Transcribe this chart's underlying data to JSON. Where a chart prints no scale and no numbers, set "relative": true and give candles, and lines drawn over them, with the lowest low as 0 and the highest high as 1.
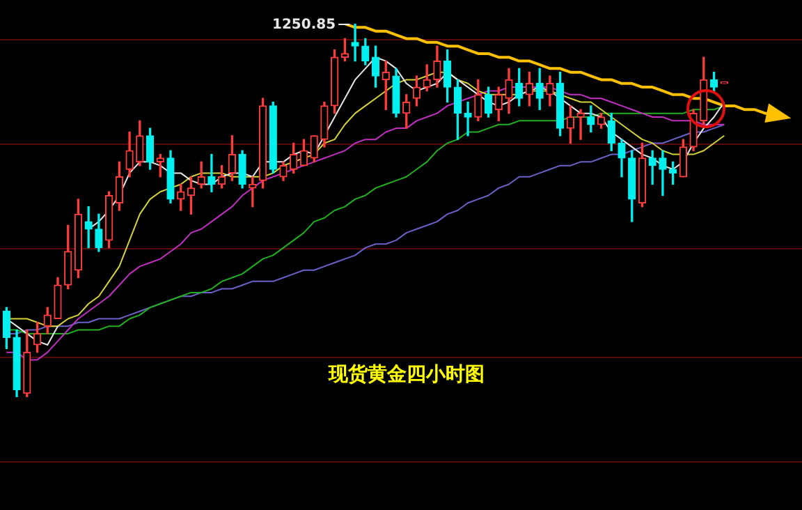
{
  "chart_data": {
    "type": "candlestick",
    "title": "现货黄金四小时图",
    "relative": true,
    "ref_lines": [
      {
        "axis": "y",
        "value": 0.96,
        "color": "#5a0a0a"
      },
      {
        "axis": "y",
        "value": 0.68,
        "color": "#5a0a0a"
      },
      {
        "axis": "y",
        "value": 0.4,
        "color": "#5a0a0a"
      },
      {
        "axis": "y",
        "value": 0.11,
        "color": "#5a0a0a"
      },
      {
        "axis": "y",
        "value": -0.17,
        "color": "#5a0a0a"
      }
    ],
    "categories": [
      null,
      null,
      null,
      null,
      null,
      null,
      null,
      null,
      null,
      null,
      null,
      null,
      null,
      null,
      null,
      null,
      null,
      null,
      null,
      null,
      null,
      null,
      null,
      null,
      null,
      null,
      null,
      null,
      null,
      null,
      null,
      null,
      null,
      null,
      null,
      null,
      null,
      null,
      null,
      null,
      null,
      null,
      null,
      null,
      null,
      null,
      null,
      null,
      null,
      null,
      null,
      null,
      null,
      null,
      null,
      null,
      null,
      null,
      null,
      null,
      null,
      null,
      null,
      null,
      null,
      null,
      null,
      null,
      null,
      null,
      null,
      null,
      null,
      null,
      null,
      null,
      null
    ],
    "ohlc": [
      [
        0.23,
        0.24,
        0.13,
        0.16
      ],
      [
        0.16,
        0.18,
        0,
        0.02
      ],
      [
        0.01,
        0.18,
        0.0,
        0.12
      ],
      [
        0.14,
        0.2,
        0.12,
        0.17
      ],
      [
        0.19,
        0.24,
        0.17,
        0.22
      ],
      [
        0.21,
        0.32,
        0.21,
        0.3
      ],
      [
        0.3,
        0.46,
        0.29,
        0.39
      ],
      [
        0.34,
        0.53,
        0.32,
        0.49
      ],
      [
        0.47,
        0.51,
        0.4,
        0.45
      ],
      [
        0.45,
        0.49,
        0.39,
        0.4
      ],
      [
        0.42,
        0.55,
        0.4,
        0.54
      ],
      [
        0.52,
        0.63,
        0.5,
        0.59
      ],
      [
        0.61,
        0.71,
        0.59,
        0.66
      ],
      [
        0.63,
        0.74,
        0.62,
        0.7
      ],
      [
        0.7,
        0.72,
        0.61,
        0.63
      ],
      [
        0.63,
        0.65,
        0.59,
        0.64
      ],
      [
        0.64,
        0.66,
        0.52,
        0.53
      ],
      [
        0.53,
        0.57,
        0.5,
        0.55
      ],
      [
        0.54,
        0.59,
        0.49,
        0.56
      ],
      [
        0.57,
        0.63,
        0.56,
        0.59
      ],
      [
        0.59,
        0.65,
        0.55,
        0.57
      ],
      [
        0.57,
        0.62,
        0.56,
        0.59
      ],
      [
        0.6,
        0.7,
        0.58,
        0.65
      ],
      [
        0.65,
        0.66,
        0.56,
        0.57
      ],
      [
        0.56,
        0.59,
        0.51,
        0.57
      ],
      [
        0.58,
        0.8,
        0.56,
        0.78
      ],
      [
        0.78,
        0.79,
        0.6,
        0.61
      ],
      [
        0.59,
        0.63,
        0.58,
        0.62
      ],
      [
        0.61,
        0.68,
        0.6,
        0.65
      ],
      [
        0.62,
        0.69,
        0.62,
        0.66
      ],
      [
        0.64,
        0.7,
        0.63,
        0.7
      ],
      [
        0.69,
        0.79,
        0.67,
        0.78
      ],
      [
        0.78,
        0.93,
        0.76,
        0.91
      ],
      [
        0.91,
        0.96,
        0.9,
        0.92
      ],
      [
        0.95,
        1,
        0.9,
        0.94
      ],
      [
        0.94,
        0.96,
        0.89,
        0.9
      ],
      [
        0.91,
        0.94,
        0.83,
        0.86
      ],
      [
        0.85,
        0.9,
        0.77,
        0.87
      ],
      [
        0.86,
        0.88,
        0.75,
        0.76
      ],
      [
        0.76,
        0.81,
        0.72,
        0.79
      ],
      [
        0.8,
        0.86,
        0.78,
        0.83
      ],
      [
        0.83,
        0.89,
        0.82,
        0.85
      ],
      [
        0.85,
        0.94,
        0.83,
        0.9
      ],
      [
        0.9,
        0.93,
        0.79,
        0.83
      ],
      [
        0.83,
        0.85,
        0.69,
        0.76
      ],
      [
        0.76,
        0.79,
        0.7,
        0.75
      ],
      [
        0.75,
        0.85,
        0.74,
        0.81
      ],
      [
        0.81,
        0.83,
        0.75,
        0.76
      ],
      [
        0.77,
        0.83,
        0.74,
        0.81
      ],
      [
        0.8,
        0.88,
        0.76,
        0.85
      ],
      [
        0.84,
        0.88,
        0.78,
        0.8
      ],
      [
        0.81,
        0.87,
        0.78,
        0.84
      ],
      [
        0.84,
        0.88,
        0.77,
        0.8
      ],
      [
        0.81,
        0.86,
        0.78,
        0.84
      ],
      [
        0.84,
        0.87,
        0.7,
        0.72
      ],
      [
        0.72,
        0.78,
        0.68,
        0.75
      ],
      [
        0.75,
        0.77,
        0.69,
        0.76
      ],
      [
        0.75,
        0.78,
        0.71,
        0.73
      ],
      [
        0.73,
        0.76,
        0.72,
        0.75
      ],
      [
        0.74,
        0.76,
        0.66,
        0.68
      ],
      [
        0.68,
        0.69,
        0.59,
        0.64
      ],
      [
        0.64,
        0.66,
        0.47,
        0.53
      ],
      [
        0.52,
        0.68,
        0.51,
        0.64
      ],
      [
        0.64,
        0.66,
        0.57,
        0.62
      ],
      [
        0.64,
        0.66,
        0.54,
        0.61
      ],
      [
        0.61,
        0.63,
        0.57,
        0.6
      ],
      [
        0.59,
        0.69,
        0.59,
        0.67
      ],
      [
        0.67,
        0.77,
        0.66,
        0.76
      ],
      [
        0.74,
        0.91,
        0.73,
        0.85
      ],
      [
        0.85,
        0.87,
        0.82,
        0.83
      ],
      [
        0.84,
        0.84,
        0.84,
        0.84
      ],
      null,
      null,
      null,
      null,
      null,
      null
    ],
    "series": [
      {
        "type": "line",
        "color": "#e8e8e8",
        "values": [
          0.21,
          0.19,
          0.17,
          0.15,
          0.14,
          0.19,
          null,
          null,
          0.45,
          0.47,
          0.5,
          0.54,
          0.6,
          0.63,
          0.63,
          0.62,
          0.6,
          0.6,
          0.58,
          0.57,
          0.57,
          0.59,
          0.6,
          0.6,
          0.59,
          0.63,
          0.63,
          0.63,
          0.65,
          0.66,
          0.65,
          0.7,
          0.75,
          0.8,
          0.85,
          0.88,
          0.91,
          0.9,
          0.88,
          0.84,
          0.82,
          0.83,
          0.84,
          0.87,
          0.85,
          0.83,
          0.81,
          0.79,
          0.78,
          0.79,
          0.81,
          0.82,
          0.83,
          0.82,
          0.8,
          0.78,
          0.76,
          0.76,
          0.75,
          0.71,
          0.69,
          0.67,
          0.65,
          0.64,
          0.62,
          0.61,
          0.63,
          0.68,
          0.72,
          0.75,
          0.79,
          null,
          null,
          null,
          null,
          null,
          null
        ]
      },
      {
        "type": "line",
        "color": "#d6d23a",
        "values": [
          0.21,
          0.21,
          0.21,
          0.2,
          0.19,
          0.19,
          0.21,
          0.22,
          0.25,
          0.27,
          0.31,
          0.35,
          0.42,
          0.49,
          0.53,
          0.55,
          0.56,
          0.57,
          0.59,
          0.6,
          0.6,
          0.6,
          0.59,
          0.59,
          0.59,
          0.59,
          0.6,
          0.62,
          0.63,
          0.64,
          0.65,
          0.68,
          0.69,
          0.73,
          0.76,
          0.78,
          0.8,
          0.82,
          0.84,
          0.85,
          0.85,
          0.86,
          0.87,
          0.87,
          0.85,
          0.84,
          0.82,
          0.81,
          0.81,
          0.81,
          0.81,
          0.82,
          0.82,
          0.82,
          0.81,
          0.8,
          0.79,
          0.79,
          0.77,
          0.75,
          0.73,
          0.71,
          0.69,
          0.68,
          0.66,
          0.65,
          0.65,
          0.65,
          0.66,
          0.68,
          0.7,
          null,
          null,
          null,
          null,
          null,
          null
        ]
      },
      {
        "type": "line",
        "color": "#c030c0",
        "values": [
          0.12,
          0.12,
          0.1,
          0.1,
          0.12,
          0.15,
          0.18,
          0.21,
          0.23,
          0.25,
          0.27,
          0.3,
          0.33,
          0.35,
          0.36,
          0.37,
          0.39,
          0.41,
          0.44,
          0.45,
          0.47,
          0.49,
          0.51,
          0.54,
          0.56,
          0.58,
          0.59,
          0.6,
          0.61,
          0.62,
          0.63,
          0.64,
          0.65,
          0.66,
          0.68,
          0.69,
          0.69,
          0.71,
          0.72,
          0.72,
          0.74,
          0.75,
          0.76,
          0.78,
          0.79,
          0.8,
          0.81,
          0.82,
          0.82,
          0.83,
          0.83,
          0.83,
          0.83,
          0.83,
          0.82,
          0.81,
          0.81,
          0.8,
          0.8,
          0.79,
          0.78,
          0.77,
          0.76,
          0.75,
          0.75,
          0.74,
          0.74,
          0.74,
          0.73,
          0.73,
          0.73,
          null,
          null,
          null,
          null,
          null,
          null
        ]
      },
      {
        "type": "line",
        "color": "#22b022",
        "values": [
          0.18,
          0.18,
          0.17,
          0.17,
          0.17,
          0.17,
          0.17,
          0.18,
          0.18,
          0.18,
          0.19,
          0.19,
          0.21,
          0.22,
          0.24,
          0.25,
          0.26,
          0.27,
          0.28,
          0.28,
          0.29,
          0.31,
          0.32,
          0.33,
          0.35,
          0.37,
          0.38,
          0.4,
          0.42,
          0.44,
          0.47,
          0.48,
          0.5,
          0.51,
          0.53,
          0.54,
          0.56,
          0.57,
          0.58,
          0.59,
          0.61,
          0.63,
          0.66,
          0.68,
          0.69,
          0.71,
          0.71,
          0.72,
          0.73,
          0.73,
          0.74,
          0.74,
          0.74,
          0.74,
          0.74,
          0.75,
          0.75,
          0.75,
          0.76,
          0.76,
          0.76,
          0.76,
          0.76,
          0.76,
          0.76,
          0.76,
          0.76,
          0.77,
          0.77,
          0.77,
          0.78,
          null,
          null,
          null,
          null,
          null,
          null
        ]
      },
      {
        "type": "line",
        "color": "#6a62c8",
        "values": [
          0.17,
          0.17,
          0.18,
          0.18,
          0.19,
          0.19,
          0.19,
          0.2,
          0.2,
          0.21,
          0.21,
          0.21,
          0.22,
          0.23,
          0.24,
          0.25,
          0.26,
          0.27,
          0.27,
          0.28,
          0.28,
          0.29,
          0.29,
          0.3,
          0.31,
          0.31,
          0.31,
          0.32,
          0.33,
          0.34,
          0.34,
          0.35,
          0.36,
          0.37,
          0.38,
          0.4,
          0.41,
          0.41,
          0.42,
          0.44,
          0.45,
          0.46,
          0.47,
          0.49,
          0.5,
          0.52,
          0.53,
          0.54,
          0.56,
          0.57,
          0.59,
          0.59,
          0.6,
          0.61,
          0.62,
          0.62,
          0.63,
          0.63,
          0.64,
          0.65,
          0.65,
          0.66,
          0.67,
          0.68,
          0.68,
          0.69,
          0.7,
          0.71,
          0.71,
          0.72,
          0.73,
          null,
          null,
          null,
          null,
          null,
          null
        ]
      },
      {
        "type": "line",
        "color": "#ffc000",
        "values": [
          null,
          null,
          null,
          null,
          null,
          null,
          null,
          null,
          null,
          null,
          null,
          null,
          null,
          null,
          null,
          null,
          null,
          null,
          null,
          null,
          null,
          null,
          null,
          null,
          null,
          null,
          null,
          null,
          null,
          null,
          null,
          null,
          null,
          1,
          0.99,
          0.99,
          0.98,
          0.98,
          0.97,
          0.96,
          0.96,
          0.95,
          0.95,
          0.94,
          0.94,
          0.93,
          0.92,
          0.92,
          0.91,
          0.91,
          0.9,
          0.9,
          0.89,
          0.88,
          0.88,
          0.87,
          0.87,
          0.86,
          0.85,
          0.85,
          0.84,
          0.84,
          0.83,
          0.83,
          0.82,
          0.81,
          0.81,
          0.8,
          0.8,
          0.79,
          0.78,
          0.78,
          0.77,
          0.77,
          0.76,
          0.76,
          0.75
        ]
      }
    ],
    "annotations": [
      "1250.85"
    ]
  }
}
